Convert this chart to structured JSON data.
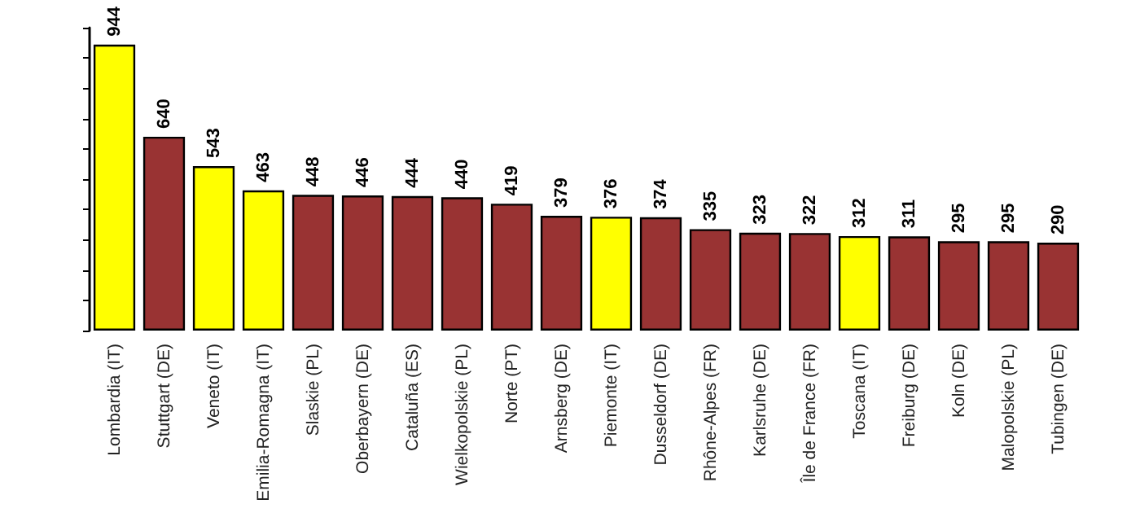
{
  "chart_data": {
    "type": "bar",
    "categories": [
      "Lombardia (IT)",
      "Stuttgart (DE)",
      "Veneto (IT)",
      "Emilia-Romagna (IT)",
      "Slaskie (PL)",
      "Oberbayern (DE)",
      "Cataluña (ES)",
      "Wielkopolskie (PL)",
      "Norte (PT)",
      "Arnsberg (DE)",
      "Piemonte (IT)",
      "Dusseldorf (DE)",
      "Rhône-Alpes (FR)",
      "Karlsruhe (DE)",
      "Île de France (FR)",
      "Toscana (IT)",
      "Freiburg (DE)",
      "Koln (DE)",
      "Malopolskie (PL)",
      "Tubingen (DE)"
    ],
    "values": [
      944,
      640,
      543,
      463,
      448,
      446,
      444,
      440,
      419,
      379,
      376,
      374,
      335,
      323,
      322,
      312,
      311,
      295,
      295,
      290
    ],
    "colors": [
      "#ffff00",
      "#993333",
      "#ffff00",
      "#ffff00",
      "#993333",
      "#993333",
      "#993333",
      "#993333",
      "#993333",
      "#993333",
      "#ffff00",
      "#993333",
      "#993333",
      "#993333",
      "#993333",
      "#ffff00",
      "#993333",
      "#993333",
      "#993333",
      "#993333"
    ],
    "ylim": [
      0,
      1000
    ],
    "yticks": [
      {
        "value": 0,
        "label": null
      },
      {
        "value": 100,
        "label": null
      },
      {
        "value": 200,
        "label": null
      },
      {
        "value": 300,
        "label": null
      },
      {
        "value": 400,
        "label": null
      },
      {
        "value": 500,
        "label": null
      },
      {
        "value": 600,
        "label": null
      },
      {
        "value": 700,
        "label": null
      },
      {
        "value": 800,
        "label": null
      },
      {
        "value": 900,
        "label": null
      },
      {
        "value": 1000,
        "label": null
      }
    ],
    "tick_labels": "x",
    "data_labels": true
  }
}
